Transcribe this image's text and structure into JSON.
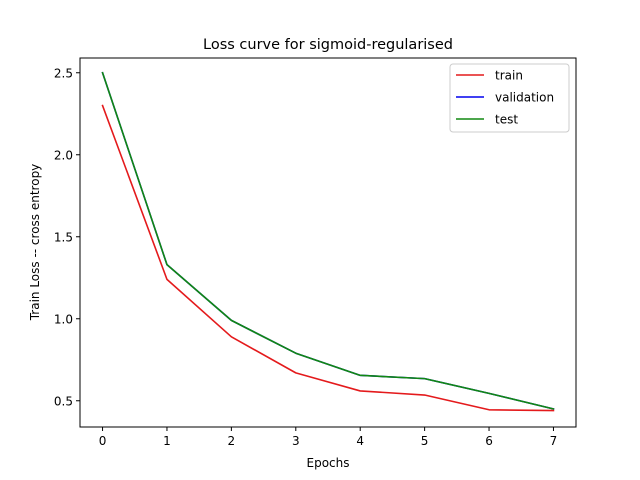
{
  "chart_data": {
    "type": "line",
    "title": "Loss curve for sigmoid-regularised",
    "xlabel": "Epochs",
    "ylabel": "Train Loss -- cross entropy",
    "x": [
      0,
      1,
      2,
      3,
      4,
      5,
      6,
      7
    ],
    "xlim": [
      -0.35,
      7.35
    ],
    "ylim": [
      0.34,
      2.59
    ],
    "xticks": [
      0,
      1,
      2,
      3,
      4,
      5,
      6,
      7
    ],
    "xtick_labels": [
      "0",
      "1",
      "2",
      "3",
      "4",
      "5",
      "6",
      "7"
    ],
    "yticks": [
      0.5,
      1.0,
      1.5,
      2.0,
      2.5
    ],
    "ytick_labels": [
      "0.5",
      "1.0",
      "1.5",
      "2.0",
      "2.5"
    ],
    "grid": false,
    "legend_position": "top-right",
    "series": [
      {
        "name": "train",
        "color": "#e41a1c",
        "values": [
          2.3,
          1.24,
          0.89,
          0.67,
          0.56,
          0.535,
          0.445,
          0.44
        ]
      },
      {
        "name": "validation",
        "color": "#0000ee",
        "values": [
          2.5,
          1.33,
          0.99,
          0.79,
          0.655,
          0.635,
          0.545,
          0.45
        ]
      },
      {
        "name": "test",
        "color": "#118811",
        "values": [
          2.5,
          1.33,
          0.99,
          0.79,
          0.655,
          0.635,
          0.545,
          0.45
        ]
      }
    ]
  }
}
